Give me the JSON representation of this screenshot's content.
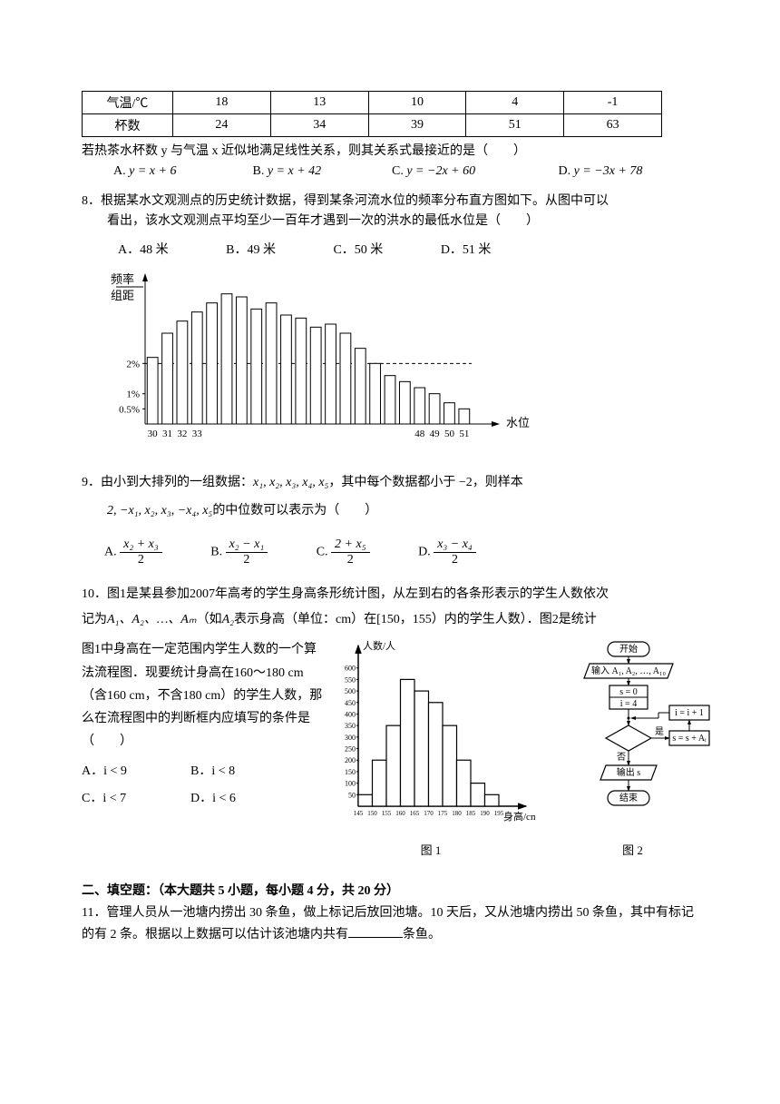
{
  "q7": {
    "table": {
      "header_row": [
        "气温/℃",
        "18",
        "13",
        "10",
        "4",
        "-1"
      ],
      "data_row": [
        "杯数",
        "24",
        "34",
        "39",
        "51",
        "63"
      ],
      "border_color": "#000000",
      "cell_padding": 2
    },
    "text": "若热茶水杯数 y 与气温 x 近似地满足线性关系，则其关系式最接近的是（　　）",
    "opts": {
      "a": {
        "label": "A.",
        "eq": "y = x + 6"
      },
      "b": {
        "label": "B.",
        "eq": "y = x + 42"
      },
      "c": {
        "label": "C.",
        "eq": "y = −2x + 60"
      },
      "d": {
        "label": "D.",
        "eq": "y = −3x + 78"
      }
    }
  },
  "q8": {
    "num": "8．",
    "text1": "根据某水文观测点的历史统计数据，得到某条河流水位的频率分布直方图如下。从图中可以",
    "text2": "看出，该水文观测点平均至少一百年才遇到一次的洪水的最低水位是（　　）",
    "opts": {
      "a": "A．48 米",
      "b": "B．49 米",
      "c": "C．50 米",
      "d": "D．51 米"
    },
    "chart": {
      "type": "histogram",
      "y_label_top": "频率",
      "y_label_bot": "组距",
      "x_label": "水位（米）",
      "y_ticks": [
        "0.5%",
        "1%",
        "2%"
      ],
      "y_tick_values": [
        0.5,
        1,
        2
      ],
      "x_ticks_left": [
        "30",
        "31",
        "32",
        "33"
      ],
      "x_ticks_right": [
        "48",
        "49",
        "50",
        "51"
      ],
      "bars": [
        2.2,
        3.0,
        3.4,
        3.7,
        4.0,
        4.3,
        4.2,
        3.8,
        4.0,
        3.6,
        3.5,
        3.2,
        3.3,
        3.0,
        2.5,
        2.0,
        1.6,
        1.4,
        1.2,
        1.0,
        0.7,
        0.5
      ],
      "bar_count": 22,
      "bar_width_ratio": 0.72,
      "axis_color": "#000000",
      "bar_fill": "#ffffff",
      "bar_stroke": "#000000",
      "dashed_line_y": 2
    }
  },
  "q9": {
    "num": "9．",
    "text1": "由小到大排列的一组数据：",
    "data_list": "x₁, x₂, x₃, x₄, x₅",
    "text2": "，其中每个数据都小于 −2，则样本",
    "text3_pre": "2, −x₁, x₂, x₃, −x₄, x₅",
    "text3_post": "的中位数可以表示为（　　）",
    "opts": {
      "a": {
        "label": "A.",
        "num": "x₂ + x₃",
        "den": "2"
      },
      "b": {
        "label": "B.",
        "num": "x₂ − x₁",
        "den": "2"
      },
      "c": {
        "label": "C.",
        "num": "2 + x₅",
        "den": "2"
      },
      "d": {
        "label": "D.",
        "num": "x₃ − x₄",
        "den": "2"
      }
    }
  },
  "q10": {
    "num": "10．",
    "text1": "图1是某县参加2007年高考的学生身高条形统计图，从左到右的各条形表示的学生人数依次",
    "text2": "记为",
    "seq": "A₁、A₂、…、Aₘ",
    "text2b": "（如",
    "a2": "A₂",
    "text2c": "表示身高（单位：cm）在[150，155）内的学生人数）．图2是统计",
    "text3": "图1中身高在一定范围内学生人数的一个算法流程图．现要统计身高在160～180 cm（含160 cm，不含180 cm）的学生人数，那么在流程图中的判断框内应填写的条件是（　　）",
    "opts": {
      "a": "A．i < 9",
      "b": "B．i < 8",
      "c": "C．i < 7",
      "d": "D．i < 6"
    },
    "fig1": {
      "label": "图 1",
      "y_label": "人数/人",
      "x_label": "身高/cm",
      "y_ticks": [
        "50",
        "100",
        "150",
        "200",
        "250",
        "300",
        "350",
        "400",
        "450",
        "500",
        "550",
        "600"
      ],
      "y_tick_values": [
        50,
        100,
        150,
        200,
        250,
        300,
        350,
        400,
        450,
        500,
        550,
        600
      ],
      "x_ticks": [
        "145",
        "150",
        "155",
        "160",
        "165",
        "170",
        "175",
        "180",
        "185",
        "190",
        "195"
      ],
      "bars": [
        50,
        200,
        350,
        550,
        500,
        450,
        350,
        200,
        100,
        50
      ],
      "bar_fill": "#ffffff",
      "bar_stroke": "#000000",
      "bar_count": 10,
      "y_max": 650
    },
    "fig2": {
      "label": "图 2",
      "type": "flowchart",
      "nodes": {
        "start": "开始",
        "input": "输入 A₁, A₂, …, A₁₀",
        "init1": "s = 0",
        "init2": "i = 4",
        "inc": "i = i + 1",
        "accum": "s = s + Aᵢ",
        "output": "输出 s",
        "end": "结束",
        "yes": "是",
        "no": "否"
      },
      "stroke": "#000000"
    }
  },
  "section2": {
    "title": "二、填空题：（本大题共 5 小题，每小题 4 分，共 20 分）"
  },
  "q11": {
    "num": "11．",
    "text": "管理人员从一池塘内捞出 30 条鱼，做上标记后放回池塘。10 天后，又从池塘内捞出 50 条鱼，其中有标记的有 2 条。根据以上数据可以估计该池塘内共有",
    "suffix": "条鱼。"
  }
}
